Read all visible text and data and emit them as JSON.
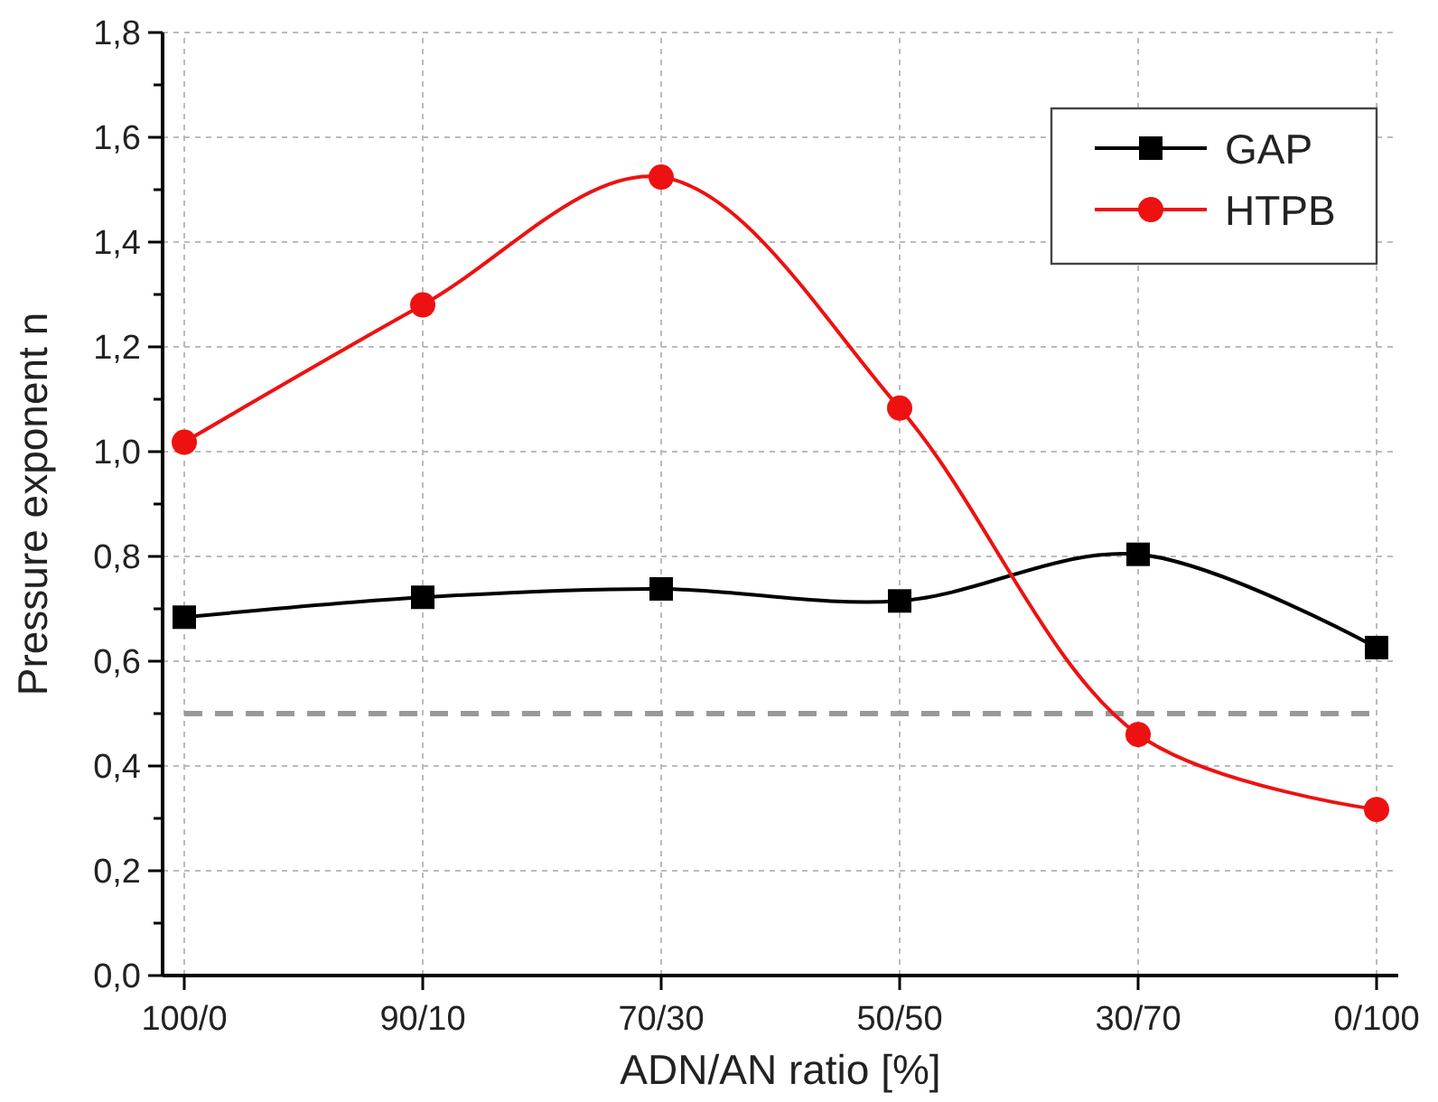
{
  "chart_data": {
    "type": "line",
    "xlabel": "ADN/AN ratio [%]",
    "ylabel": "Pressure exponent n",
    "categories": [
      "100/0",
      "90/10",
      "70/30",
      "50/50",
      "30/70",
      "0/100"
    ],
    "series": [
      {
        "name": "GAP",
        "color": "#000000",
        "marker": "square",
        "values": [
          0.684,
          0.722,
          0.738,
          0.715,
          0.804,
          0.626
        ]
      },
      {
        "name": "HTPB",
        "color": "#ee1111",
        "marker": "circle",
        "values": [
          1.018,
          1.28,
          1.524,
          1.083,
          0.46,
          0.317
        ]
      }
    ],
    "ylim": [
      0,
      1.8
    ],
    "yticks": [
      {
        "value": 0,
        "label": "0,0"
      },
      {
        "value": 0.1,
        "label": null
      },
      {
        "value": 0.2,
        "label": "0,2"
      },
      {
        "value": 0.3,
        "label": null
      },
      {
        "value": 0.4,
        "label": "0,4"
      },
      {
        "value": 0.5,
        "label": null
      },
      {
        "value": 0.6,
        "label": "0,6"
      },
      {
        "value": 0.7,
        "label": null
      },
      {
        "value": 0.8,
        "label": "0,8"
      },
      {
        "value": 0.9,
        "label": null
      },
      {
        "value": 1.0,
        "label": "1,0"
      },
      {
        "value": 1.1,
        "label": null
      },
      {
        "value": 1.2,
        "label": "1,2"
      },
      {
        "value": 1.3,
        "label": null
      },
      {
        "value": 1.4,
        "label": "1,4"
      },
      {
        "value": 1.5,
        "label": null
      },
      {
        "value": 1.6,
        "label": "1,6"
      },
      {
        "value": 1.7,
        "label": null
      },
      {
        "value": 1.8,
        "label": "1,8"
      }
    ],
    "ref_lines": [
      {
        "axis": "y",
        "value": 0.5,
        "color": "#999999",
        "line_style": "dashed"
      }
    ],
    "grid": true,
    "legend": "top right",
    "line_style": "solid"
  }
}
